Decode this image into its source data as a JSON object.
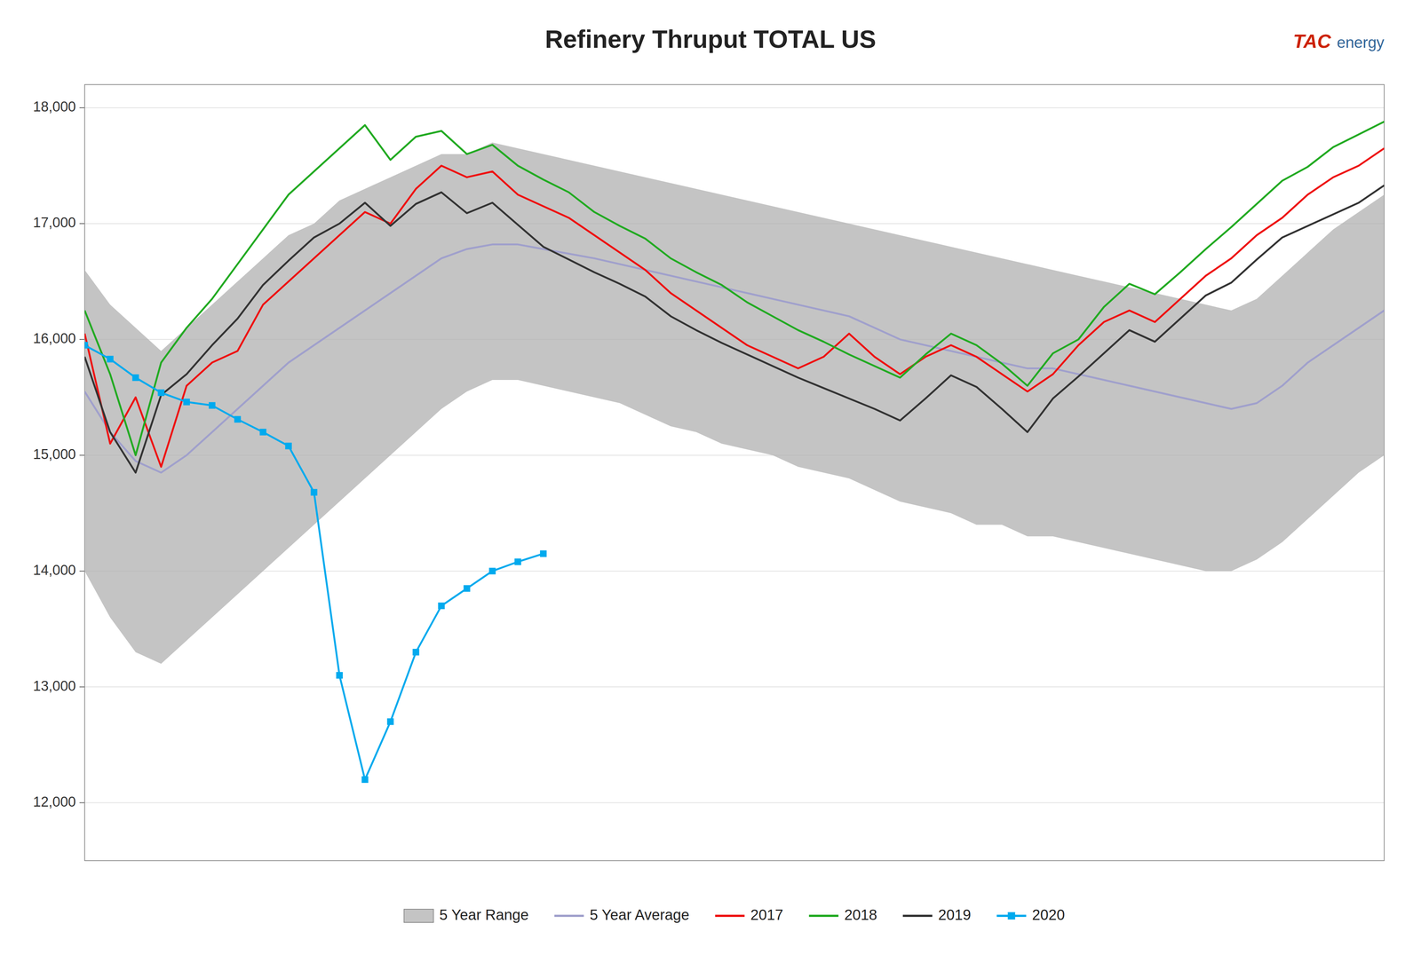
{
  "chart_data": {
    "type": "line",
    "title": "Refinery Thruput TOTAL US",
    "annotations": [
      {
        "text": "TAC",
        "color": "#cc2200"
      },
      {
        "text": "energy",
        "color": "#336699"
      }
    ],
    "x": [
      1,
      2,
      3,
      4,
      5,
      6,
      7,
      8,
      9,
      10,
      11,
      12,
      13,
      14,
      15,
      16,
      17,
      18,
      19,
      20,
      21,
      22,
      23,
      24,
      25,
      26,
      27,
      28,
      29,
      30,
      31,
      32,
      33,
      34,
      35,
      36,
      37,
      38,
      39,
      40,
      41,
      42,
      43,
      44,
      45,
      46,
      47,
      48,
      49,
      50,
      51,
      52
    ],
    "series": [
      {
        "name": "5 Year Range",
        "type": "range",
        "color": "#b0b0b0",
        "upper": [
          16600,
          16300,
          16100,
          15900,
          16100,
          16300,
          16500,
          16700,
          16900,
          17000,
          17200,
          17300,
          17400,
          17500,
          17600,
          17600,
          17700,
          17650,
          17600,
          17550,
          17500,
          17450,
          17400,
          17350,
          17300,
          17250,
          17200,
          17150,
          17100,
          17050,
          17000,
          16950,
          16900,
          16850,
          16800,
          16750,
          16700,
          16650,
          16600,
          16550,
          16500,
          16450,
          16400,
          16350,
          16300,
          16250,
          16350,
          16550,
          16750,
          16950,
          17100,
          17250
        ],
        "lower": [
          14000,
          13600,
          13300,
          13200,
          13400,
          13600,
          13800,
          14000,
          14200,
          14400,
          14600,
          14800,
          15000,
          15200,
          15400,
          15550,
          15650,
          15650,
          15600,
          15550,
          15500,
          15450,
          15350,
          15250,
          15200,
          15100,
          15050,
          15000,
          14900,
          14850,
          14800,
          14700,
          14600,
          14550,
          14500,
          14400,
          14400,
          14300,
          14300,
          14250,
          14200,
          14150,
          14100,
          14050,
          14000,
          14000,
          14100,
          14250,
          14450,
          14650,
          14850,
          15000
        ]
      },
      {
        "name": "5 Year Average",
        "color": "#a0a0cc",
        "values": [
          15550,
          15200,
          14950,
          14850,
          15000,
          15200,
          15400,
          15600,
          15800,
          15950,
          16100,
          16250,
          16400,
          16550,
          16700,
          16780,
          16820,
          16820,
          16780,
          16740,
          16700,
          16650,
          16600,
          16550,
          16500,
          16450,
          16400,
          16350,
          16300,
          16250,
          16200,
          16100,
          16000,
          15950,
          15900,
          15850,
          15800,
          15750,
          15750,
          15700,
          15650,
          15600,
          15550,
          15500,
          15450,
          15400,
          15450,
          15600,
          15800,
          15950,
          16100,
          16250
        ]
      },
      {
        "name": "2017",
        "color": "#ee1111",
        "values": [
          16050,
          15100,
          15500,
          14900,
          15600,
          15800,
          15900,
          16300,
          16500,
          16700,
          16900,
          17100,
          17000,
          17300,
          17500,
          17400,
          17450,
          17250,
          17150,
          17050,
          16900,
          16750,
          16600,
          16400,
          16250,
          16100,
          15950,
          15850,
          15750,
          15850,
          16050,
          15850,
          15700,
          15850,
          15950,
          15850,
          15700,
          15550,
          15700,
          15950,
          16150,
          16250,
          16150,
          16350,
          16550,
          16700,
          16900,
          17050,
          17250,
          17400,
          17500,
          17650
        ]
      },
      {
        "name": "2018",
        "color": "#22aa22",
        "values": [
          16250,
          15700,
          15000,
          15800,
          16100,
          16350,
          16650,
          16950,
          17250,
          17450,
          17650,
          17850,
          17550,
          17750,
          17800,
          17600,
          17680,
          17500,
          17380,
          17270,
          17100,
          16980,
          16870,
          16700,
          16580,
          16470,
          16320,
          16200,
          16080,
          15980,
          15870,
          15770,
          15670,
          15870,
          16050,
          15950,
          15790,
          15600,
          15880,
          16000,
          16280,
          16480,
          16390,
          16580,
          16780,
          16970,
          17170,
          17370,
          17490,
          17660,
          17770,
          17880
        ]
      },
      {
        "name": "2019",
        "color": "#333333",
        "values": [
          15850,
          15200,
          14850,
          15520,
          15700,
          15950,
          16180,
          16470,
          16680,
          16880,
          17000,
          17180,
          16980,
          17170,
          17270,
          17090,
          17180,
          16990,
          16800,
          16690,
          16580,
          16480,
          16370,
          16200,
          16080,
          15970,
          15870,
          15770,
          15670,
          15580,
          15490,
          15400,
          15300,
          15490,
          15690,
          15590,
          15400,
          15200,
          15490,
          15680,
          15880,
          16080,
          15980,
          16180,
          16380,
          16490,
          16690,
          16880,
          16980,
          17080,
          17180,
          17330
        ]
      },
      {
        "name": "2020",
        "color": "#00aaee",
        "marker": "square",
        "x": [
          1,
          2,
          3,
          4,
          5,
          6,
          7,
          8,
          9,
          10,
          11,
          12,
          13,
          14,
          15,
          16,
          17,
          18,
          19
        ],
        "values": [
          15950,
          15830,
          15670,
          15540,
          15460,
          15430,
          15310,
          15200,
          15080,
          14680,
          13100,
          12200,
          12700,
          13300,
          13700,
          13850,
          14000,
          14080,
          14150
        ]
      }
    ],
    "xlim": [
      1,
      52
    ],
    "ylim": [
      11500,
      18200
    ],
    "yticks": [
      {
        "value": 12000,
        "label": "12,000"
      },
      {
        "value": 13000,
        "label": "13,000"
      },
      {
        "value": 14000,
        "label": "14,000"
      },
      {
        "value": 15000,
        "label": "15,000"
      },
      {
        "value": 16000,
        "label": "16,000"
      },
      {
        "value": 17000,
        "label": "17,000"
      },
      {
        "value": 18000,
        "label": "18,000"
      }
    ],
    "tick_labels": "y",
    "grid": true,
    "legend": "bottom"
  }
}
